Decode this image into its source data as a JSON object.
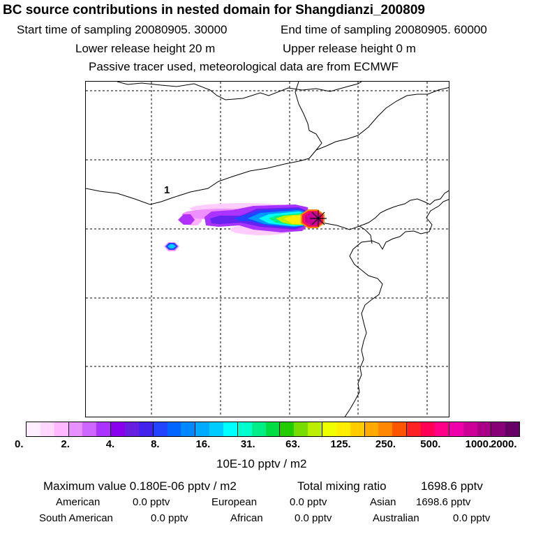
{
  "header": {
    "title": "BC  source contributions in nested domain for Shangdianzi_200809",
    "start_time": "Start time of sampling 20080905. 30000",
    "end_time": "End time of sampling 20080905. 60000",
    "lower_height": "Lower release height   20 m",
    "upper_height": "Upper release height    0 m",
    "tracer_note": "Passive tracer used, meteorological data are from ECMWF"
  },
  "map": {
    "contour_label": "1",
    "receptor_marker": "star"
  },
  "scale": {
    "tick_labels": [
      "0.",
      "2.",
      "4.",
      "8.",
      "16.",
      "31.",
      "63.",
      "125.",
      "250.",
      "500.",
      "1000.",
      "2000."
    ],
    "units": "10E-10 pptv / m2",
    "colors": [
      "#ffeeff",
      "#ffd8ff",
      "#ffb8ff",
      "#e890ff",
      "#cc66ff",
      "#aa33ff",
      "#8800ee",
      "#6620dd",
      "#4422ee",
      "#2244ff",
      "#0066ff",
      "#0088ff",
      "#00aaff",
      "#00ccff",
      "#00ffff",
      "#00ffcc",
      "#00ee88",
      "#00dd44",
      "#22cc00",
      "#77dd00",
      "#bbee00",
      "#eeff00",
      "#ffee00",
      "#ffcc00",
      "#ffaa00",
      "#ff8800",
      "#ff5500",
      "#ff2222",
      "#ff0055",
      "#ff0088",
      "#ee00aa",
      "#cc0099",
      "#aa0088",
      "#880077",
      "#660066"
    ]
  },
  "summary": {
    "max_label": "Maximum value  0.180E-06 pptv / m2",
    "total_label": "Total mixing ratio",
    "total_value": "1698.6 pptv",
    "american_label": "American",
    "american_value": "0.0 pptv",
    "european_label": "European",
    "european_value": "0.0 pptv",
    "asian_label": "Asian",
    "asian_value": "1698.6 pptv",
    "south_american_label": "South American",
    "south_american_value": "0.0 pptv",
    "african_label": "African",
    "african_value": "0.0 pptv",
    "australian_label": "Australian",
    "australian_value": "0.0 pptv"
  }
}
